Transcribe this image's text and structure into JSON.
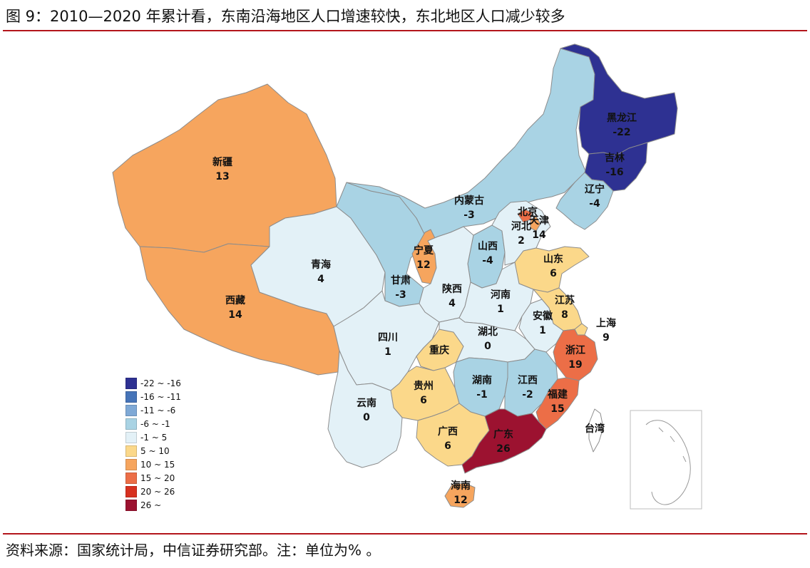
{
  "title": "图 9：2010—2020 年累计看，东南沿海地区人口增速较快，东北地区人口减少较多",
  "source": "资料来源：国家统计局，中信证券研究部。注：单位为% 。",
  "legend": [
    {
      "label": "-22 ~ -16",
      "color": "#2e3192"
    },
    {
      "label": "-16 ~ -11",
      "color": "#4674b8"
    },
    {
      "label": "-11 ~ -6",
      "color": "#7fa9d6"
    },
    {
      "label": "-6 ~ -1",
      "color": "#a9d3e4"
    },
    {
      "label": "-1 ~ 5",
      "color": "#e3f1f7"
    },
    {
      "label": "5 ~ 10",
      "color": "#fbd88a"
    },
    {
      "label": "10 ~ 15",
      "color": "#f6a55e"
    },
    {
      "label": "15 ~ 20",
      "color": "#ec6e47"
    },
    {
      "label": "20 ~ 26",
      "color": "#d7301f"
    },
    {
      "label": "26 ~",
      "color": "#9c1230"
    }
  ],
  "provinces": [
    {
      "id": "xinjiang",
      "name": "新疆",
      "value": "13",
      "color": "#f6a55e"
    },
    {
      "id": "xizang",
      "name": "西藏",
      "value": "14",
      "color": "#f6a55e"
    },
    {
      "id": "qinghai",
      "name": "青海",
      "value": "4",
      "color": "#e3f1f7"
    },
    {
      "id": "gansu",
      "name": "甘肃",
      "value": "-3",
      "color": "#a9d3e4"
    },
    {
      "id": "neimenggu",
      "name": "内蒙古",
      "value": "-3",
      "color": "#a9d3e4"
    },
    {
      "id": "heilongjiang",
      "name": "黑龙江",
      "value": "-22",
      "color": "#2e3192"
    },
    {
      "id": "jilin",
      "name": "吉林",
      "value": "-16",
      "color": "#2e3192"
    },
    {
      "id": "liaoning",
      "name": "辽宁",
      "value": "-4",
      "color": "#a9d3e4"
    },
    {
      "id": "ningxia",
      "name": "宁夏",
      "value": "12",
      "color": "#f6a55e"
    },
    {
      "id": "shanxi",
      "name": "山西",
      "value": "-4",
      "color": "#a9d3e4"
    },
    {
      "id": "hebei",
      "name": "河北",
      "value": "2",
      "color": "#e3f1f7"
    },
    {
      "id": "beijing",
      "name": "北京",
      "value": "",
      "color": "#ec6e47"
    },
    {
      "id": "tianjin",
      "name": "天津",
      "value": "14",
      "color": "#f6a55e"
    },
    {
      "id": "shandong",
      "name": "山东",
      "value": "6",
      "color": "#fbd88a"
    },
    {
      "id": "shaanxi",
      "name": "陕西",
      "value": "4",
      "color": "#e3f1f7"
    },
    {
      "id": "henan",
      "name": "河南",
      "value": "1",
      "color": "#e3f1f7"
    },
    {
      "id": "jiangsu",
      "name": "江苏",
      "value": "8",
      "color": "#fbd88a"
    },
    {
      "id": "anhui",
      "name": "安徽",
      "value": "1",
      "color": "#e3f1f7"
    },
    {
      "id": "shanghai",
      "name": "上海",
      "value": "9",
      "color": "#fbd88a"
    },
    {
      "id": "sichuan",
      "name": "四川",
      "value": "1",
      "color": "#e3f1f7"
    },
    {
      "id": "chongqing",
      "name": "重庆",
      "value": "",
      "color": "#fbd88a"
    },
    {
      "id": "hubei",
      "name": "湖北",
      "value": "0",
      "color": "#e3f1f7"
    },
    {
      "id": "zhejiang",
      "name": "浙江",
      "value": "19",
      "color": "#ec6e47"
    },
    {
      "id": "hunan",
      "name": "湖南",
      "value": "-1",
      "color": "#a9d3e4"
    },
    {
      "id": "jiangxi",
      "name": "江西",
      "value": "-2",
      "color": "#a9d3e4"
    },
    {
      "id": "guizhou",
      "name": "贵州",
      "value": "6",
      "color": "#fbd88a"
    },
    {
      "id": "yunnan",
      "name": "云南",
      "value": "0",
      "color": "#e3f1f7"
    },
    {
      "id": "fujian",
      "name": "福建",
      "value": "15",
      "color": "#ec6e47"
    },
    {
      "id": "guangxi",
      "name": "广西",
      "value": "6",
      "color": "#fbd88a"
    },
    {
      "id": "guangdong",
      "name": "广东",
      "value": "26",
      "color": "#9c1230"
    },
    {
      "id": "taiwan",
      "name": "台湾",
      "value": "",
      "color": "#ffffff"
    },
    {
      "id": "hainan",
      "name": "海南",
      "value": "12",
      "color": "#f6a55e"
    }
  ]
}
